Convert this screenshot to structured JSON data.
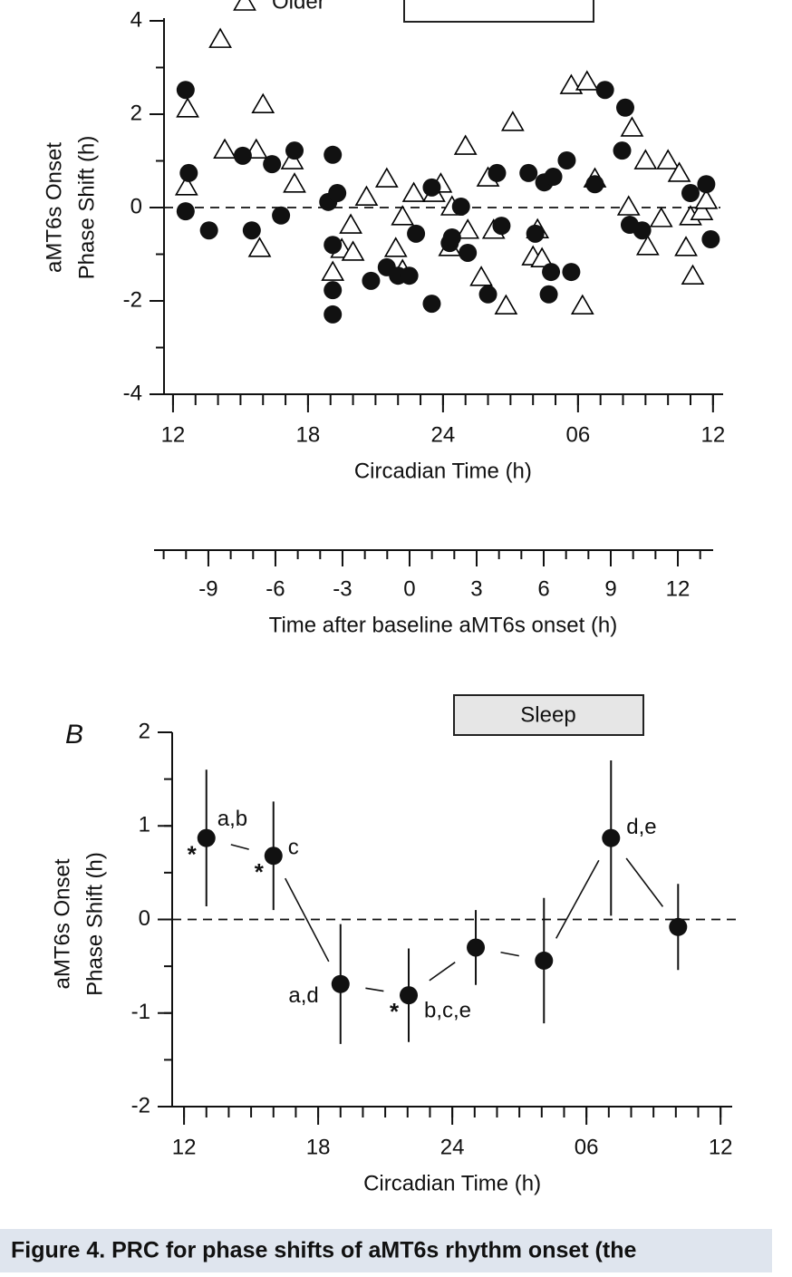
{
  "chart_data": [
    {
      "type": "scatter",
      "xlabel": "Circadian Time (h)",
      "ylabel": [
        "aMT6s Onset",
        "Phase Shift (h)"
      ],
      "xlim": [
        11.6,
        36.45
      ],
      "xticks": [
        12,
        18,
        24,
        {
          "value": 30,
          "label": "06"
        },
        {
          "value": 36,
          "label": "12"
        }
      ],
      "xminor": 1,
      "ylim": [
        -4,
        4
      ],
      "yticks": [
        -4,
        -2,
        0,
        2,
        4
      ],
      "yminor": 1,
      "hline": 0,
      "x2label": "Time after baseline aMT6s onset (h)",
      "x2lim": [
        -11.43,
        13.58
      ],
      "x2ticks": [
        -9,
        -6,
        -3,
        0,
        3,
        6,
        9,
        12
      ],
      "x2minor": 1,
      "series": [
        {
          "name": "Older",
          "marker": "triangle",
          "color": "#000000",
          "x": [
            14.1,
            12.65,
            12.6,
            14.3,
            16.0,
            15.7,
            15.85,
            17.3,
            17.4,
            19.1,
            19.5,
            19.9,
            20.0,
            20.6,
            21.5,
            21.9,
            22.2,
            22.2,
            22.7,
            23.6,
            23.9,
            24.3,
            24.4,
            25.0,
            25.1,
            25.7,
            26.0,
            26.25,
            26.8,
            27.1,
            28.0,
            28.2,
            28.4,
            29.7,
            30.4,
            30.2,
            30.75,
            32.4,
            32.25,
            33.0,
            33.1,
            33.7,
            34.0,
            34.5,
            34.8,
            35.1,
            35.0,
            35.5,
            35.7
          ],
          "values": [
            3.59,
            2.1,
            0.43,
            1.22,
            2.19,
            1.22,
            -0.89,
            0.99,
            0.49,
            -1.4,
            -0.91,
            -0.39,
            -0.97,
            0.21,
            0.6,
            -0.89,
            -0.21,
            -1.36,
            0.29,
            0.29,
            0.49,
            -0.87,
            0,
            1.3,
            -0.5,
            -1.51,
            0.62,
            -0.5,
            -2.12,
            1.81,
            -1.07,
            -0.49,
            -1.11,
            2.6,
            2.68,
            -2.12,
            0.6,
            1.69,
            0,
            0.99,
            -0.85,
            -0.25,
            0.99,
            0.72,
            -0.87,
            -1.48,
            -0.21,
            -0.1,
            0.14
          ]
        },
        {
          "marker": "circle",
          "color": "#111111",
          "x": [
            12.56,
            12.7,
            12.56,
            13.6,
            15.1,
            15.5,
            16.4,
            16.8,
            17.4,
            19.1,
            18.9,
            19.3,
            19.1,
            19.1,
            19.1,
            20.8,
            21.5,
            22.0,
            22.5,
            22.8,
            23.5,
            23.5,
            24.3,
            24.4,
            24.8,
            25.1,
            26.0,
            26.4,
            26.6,
            27.8,
            28.1,
            28.5,
            28.9,
            28.8,
            28.7,
            29.5,
            29.7,
            30.75,
            31.2,
            32.1,
            31.96,
            32.3,
            32.85,
            35.0,
            35.7,
            35.9
          ],
          "values": [
            2.52,
            0.74,
            -0.08,
            -0.49,
            1.11,
            -0.49,
            0.93,
            -0.17,
            1.22,
            1.13,
            0.12,
            0.31,
            -0.8,
            -1.77,
            -2.29,
            -1.57,
            -1.28,
            -1.46,
            -1.46,
            -0.56,
            -2.06,
            0.43,
            -0.76,
            -0.64,
            0.02,
            -0.97,
            -1.86,
            0.74,
            -0.39,
            0.74,
            -0.56,
            0.54,
            0.66,
            -1.38,
            -1.86,
            1.01,
            -1.38,
            0.5,
            2.52,
            2.14,
            1.22,
            -0.37,
            -0.49,
            0.31,
            0.5,
            -0.68
          ]
        }
      ]
    },
    {
      "type": "line",
      "panel": "B",
      "box_label": "Sleep",
      "xlabel": "Circadian Time (h)",
      "ylabel": [
        "aMT6s Onset",
        "Phase Shift (h)"
      ],
      "xlim": [
        11.47,
        36.52
      ],
      "xticks": [
        12,
        18,
        24,
        {
          "value": 30,
          "label": "06"
        },
        {
          "value": 36,
          "label": "12"
        }
      ],
      "xminor": 1,
      "ylim": [
        -2,
        2
      ],
      "yticks": [
        -2,
        -1,
        0,
        1,
        2
      ],
      "yminor": 0.5,
      "hline": 0,
      "color": "#111111",
      "x": [
        13.0,
        16.0,
        19.0,
        22.05,
        25.05,
        28.1,
        31.1,
        34.1
      ],
      "values": [
        0.87,
        0.68,
        -0.69,
        -0.81,
        -0.3,
        -0.44,
        0.87,
        -0.08
      ],
      "errors": [
        0.73,
        0.58,
        0.64,
        0.5,
        0.4,
        0.67,
        0.83,
        0.46
      ],
      "point_labels": [
        "a,b",
        "c",
        "a,d",
        "b,c,e",
        null,
        null,
        "d,e",
        null
      ],
      "point_flags": [
        "*",
        "*",
        null,
        "*",
        null,
        null,
        null,
        null
      ]
    }
  ],
  "caption": "Figure 4.  PRC for phase shifts of aMT6s rhythm onset (the"
}
